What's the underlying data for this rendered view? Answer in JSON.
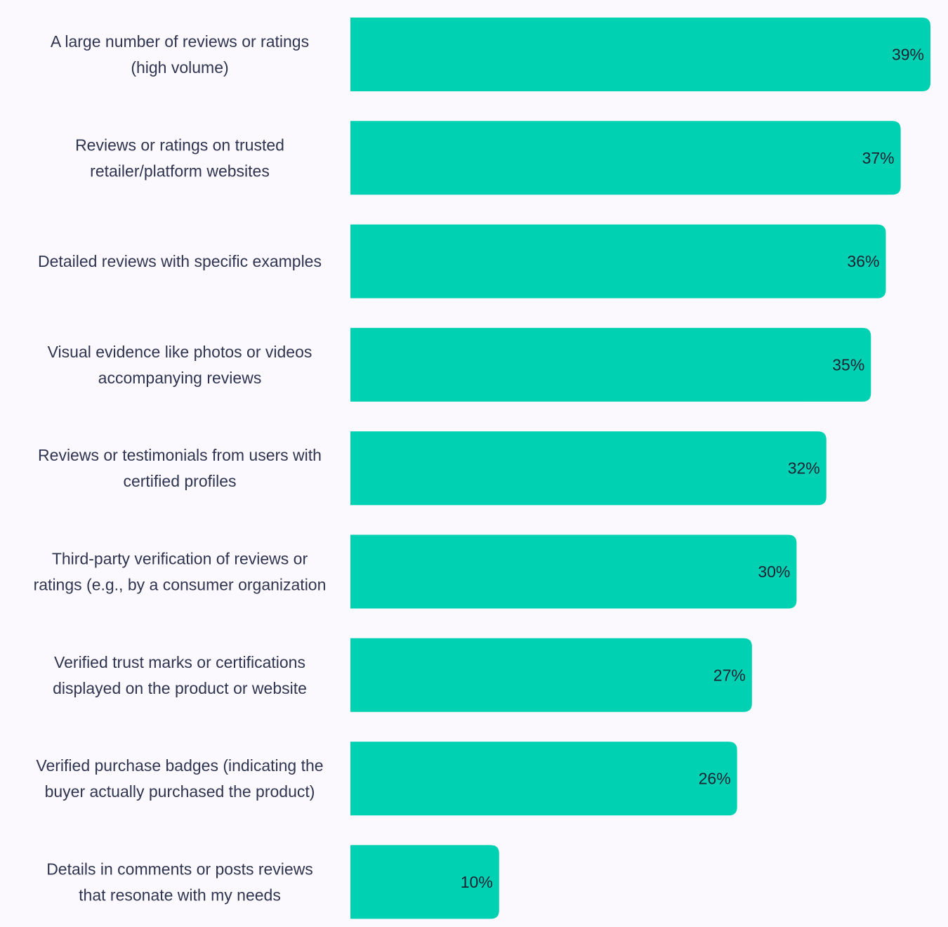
{
  "chart_data": {
    "type": "bar",
    "orientation": "horizontal",
    "categories": [
      [
        "A large number of reviews or ratings",
        "(high volume)"
      ],
      [
        "Reviews or ratings on trusted",
        "retailer/platform websites"
      ],
      [
        "Detailed reviews with specific examples"
      ],
      [
        "Visual evidence like photos or videos",
        "accompanying reviews"
      ],
      [
        "Reviews or testimonials from users with",
        "certified profiles"
      ],
      [
        "Third-party verification of reviews or",
        "ratings (e.g., by a consumer organization"
      ],
      [
        "Verified trust marks or certifications",
        "displayed on the product or website"
      ],
      [
        "Verified purchase badges (indicating the",
        "buyer actually purchased the product)"
      ],
      [
        "Details in comments or posts reviews",
        "that resonate with my needs"
      ]
    ],
    "values": [
      39,
      37,
      36,
      35,
      32,
      30,
      27,
      26,
      10
    ],
    "value_labels": [
      "39%",
      "37%",
      "36%",
      "35%",
      "32%",
      "30%",
      "27%",
      "26%",
      "10%"
    ],
    "unit": "%",
    "xlim": [
      0,
      39
    ],
    "bar_color": "#00d1b2",
    "grid": false,
    "title": "",
    "xlabel": "",
    "ylabel": ""
  }
}
